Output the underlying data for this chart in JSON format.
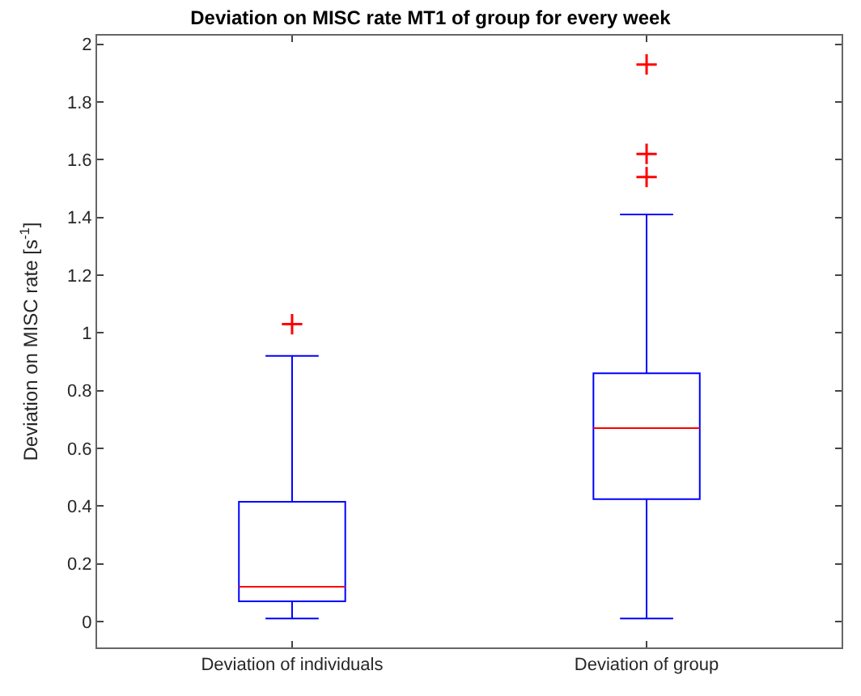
{
  "chart_data": {
    "type": "box",
    "title": "Deviation on MISC rate MT1 of group for every week",
    "ylabel": "Deviation on MISC rate [s$^{-1}$]",
    "categories": [
      "Deviation of individuals",
      "Deviation of group"
    ],
    "boxes": [
      {
        "low": 0.01,
        "q1": 0.07,
        "median": 0.12,
        "q3": 0.415,
        "high": 0.92,
        "outliers": [
          1.03
        ]
      },
      {
        "low": 0.01,
        "q1": 0.424,
        "median": 0.67,
        "q3": 0.86,
        "high": 1.41,
        "outliers": [
          1.54,
          1.62,
          1.93
        ]
      }
    ],
    "color": "#0000ff",
    "marker": "cross",
    "ylim": [
      -0.09,
      2.03
    ],
    "yticks": [
      0,
      0.2,
      0.4,
      0.6,
      0.8,
      1,
      1.2,
      1.4,
      1.6,
      1.8,
      2
    ],
    "grid": false
  }
}
